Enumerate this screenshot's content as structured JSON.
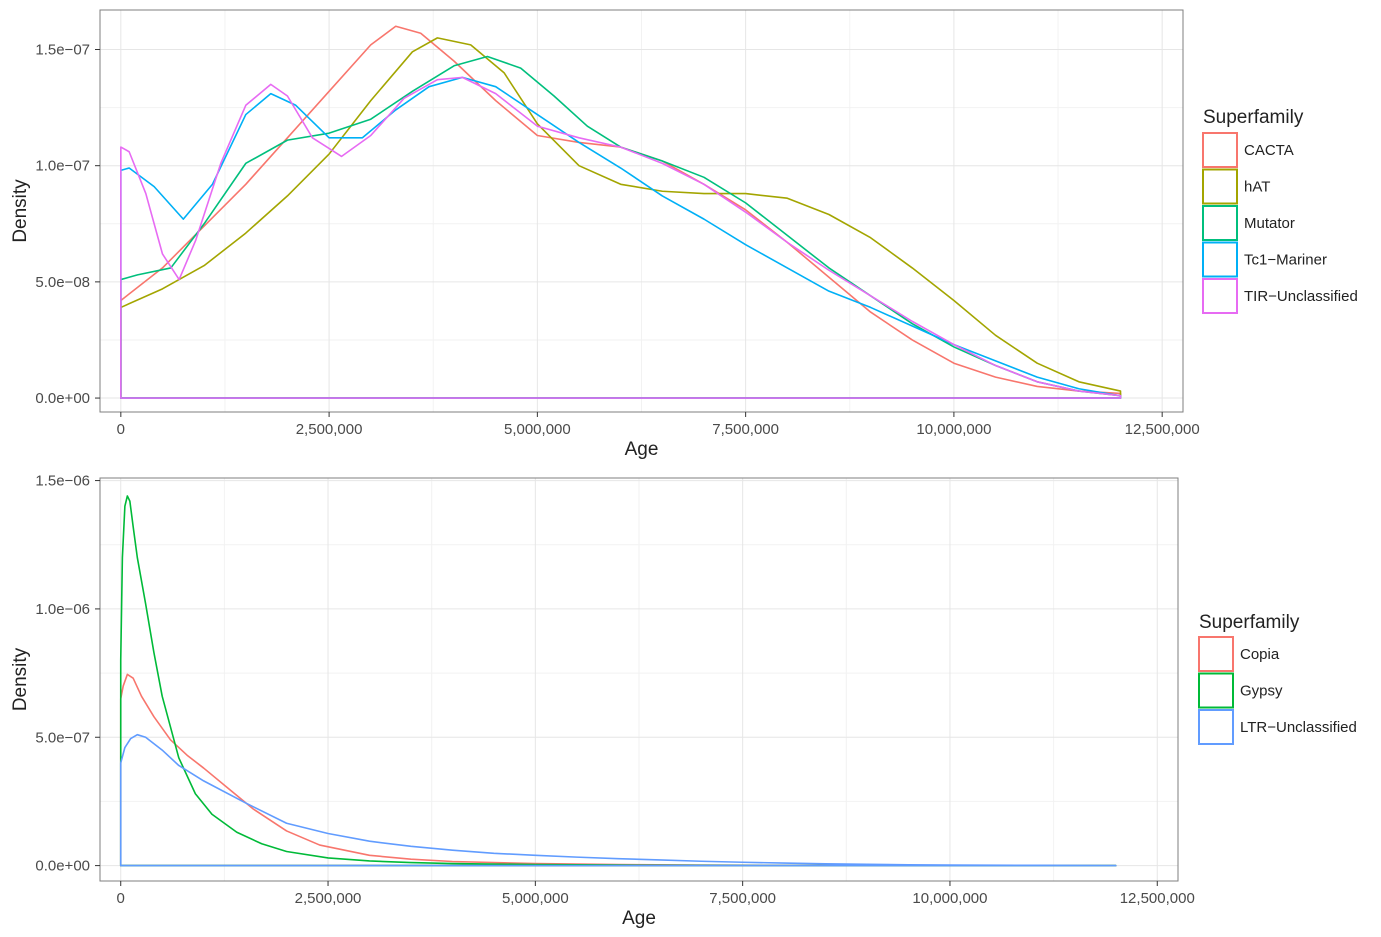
{
  "chart_data": [
    {
      "type": "line",
      "chart_kind": "density",
      "xlabel": "Age",
      "ylabel": "Density",
      "xlim": [
        -250000,
        12750000
      ],
      "ylim": [
        -6e-09,
        1.67e-07
      ],
      "xticks": [
        0,
        2500000,
        5000000,
        7500000,
        10000000,
        12500000
      ],
      "xtick_labels": [
        "0",
        "2,500,000",
        "5,000,000",
        "7,500,000",
        "10,000,000",
        "12,500,000"
      ],
      "yticks": [
        0,
        5e-08,
        1e-07,
        1.5e-07
      ],
      "ytick_labels": [
        "0.0e+00",
        "5.0e−08",
        "1.0e−07",
        "1.5e−07"
      ],
      "grid": true,
      "legend_title": "Superfamily",
      "legend_position": "right",
      "x_end": 12000000,
      "series": [
        {
          "name": "CACTA",
          "color": "#F8766D",
          "x": [
            0,
            500000,
            1000000,
            1500000,
            2000000,
            2500000,
            3000000,
            3300000,
            3600000,
            4000000,
            4500000,
            5000000,
            5500000,
            6000000,
            6500000,
            7000000,
            7500000,
            8000000,
            8500000,
            9000000,
            9500000,
            10000000,
            10500000,
            11000000,
            11500000,
            12000000
          ],
          "y": [
            4.2e-08,
            5.6e-08,
            7.4e-08,
            9.2e-08,
            1.12e-07,
            1.32e-07,
            1.52e-07,
            1.6e-07,
            1.57e-07,
            1.45e-07,
            1.28e-07,
            1.13e-07,
            1.1e-07,
            1.08e-07,
            1.02e-07,
            9.2e-08,
            8.1e-08,
            6.7e-08,
            5.2e-08,
            3.7e-08,
            2.5e-08,
            1.5e-08,
            9e-09,
            5e-09,
            3e-09,
            2e-09
          ]
        },
        {
          "name": "hAT",
          "color": "#A3A500",
          "x": [
            0,
            500000,
            1000000,
            1500000,
            2000000,
            2500000,
            3000000,
            3500000,
            3800000,
            4200000,
            4600000,
            5000000,
            5500000,
            6000000,
            6500000,
            7000000,
            7500000,
            8000000,
            8500000,
            9000000,
            9500000,
            10000000,
            10500000,
            11000000,
            11500000,
            12000000
          ],
          "y": [
            3.9e-08,
            4.7e-08,
            5.7e-08,
            7.1e-08,
            8.7e-08,
            1.05e-07,
            1.28e-07,
            1.49e-07,
            1.55e-07,
            1.52e-07,
            1.4e-07,
            1.18e-07,
            1e-07,
            9.2e-08,
            8.9e-08,
            8.8e-08,
            8.8e-08,
            8.6e-08,
            7.9e-08,
            6.9e-08,
            5.6e-08,
            4.2e-08,
            2.7e-08,
            1.5e-08,
            7e-09,
            3e-09
          ]
        },
        {
          "name": "Mutator",
          "color": "#00BF7D",
          "x": [
            0,
            200000,
            600000,
            1000000,
            1500000,
            2000000,
            2500000,
            3000000,
            3500000,
            4000000,
            4400000,
            4800000,
            5200000,
            5600000,
            6000000,
            6500000,
            7000000,
            7500000,
            8000000,
            8500000,
            9000000,
            9500000,
            10000000,
            10500000,
            11000000,
            11500000,
            12000000
          ],
          "y": [
            5.1e-08,
            5.3e-08,
            5.6e-08,
            7.5e-08,
            1.01e-07,
            1.11e-07,
            1.14e-07,
            1.2e-07,
            1.32e-07,
            1.43e-07,
            1.47e-07,
            1.42e-07,
            1.3e-07,
            1.17e-07,
            1.08e-07,
            1.02e-07,
            9.5e-08,
            8.4e-08,
            7e-08,
            5.6e-08,
            4.4e-08,
            3.2e-08,
            2.2e-08,
            1.4e-08,
            7e-09,
            3e-09,
            1e-09
          ]
        },
        {
          "name": "Tc1−Mariner",
          "color": "#00B0F6",
          "x": [
            0,
            100000,
            400000,
            750000,
            1100000,
            1500000,
            1800000,
            2100000,
            2500000,
            2900000,
            3300000,
            3700000,
            4100000,
            4500000,
            5000000,
            5500000,
            6000000,
            6500000,
            7000000,
            7500000,
            8000000,
            8500000,
            9000000,
            9500000,
            10000000,
            10500000,
            11000000,
            11500000,
            12000000
          ],
          "y": [
            9.8e-08,
            9.9e-08,
            9.1e-08,
            7.7e-08,
            9.2e-08,
            1.22e-07,
            1.31e-07,
            1.26e-07,
            1.12e-07,
            1.12e-07,
            1.24e-07,
            1.34e-07,
            1.38e-07,
            1.34e-07,
            1.22e-07,
            1.1e-07,
            9.9e-08,
            8.7e-08,
            7.7e-08,
            6.6e-08,
            5.6e-08,
            4.6e-08,
            3.9e-08,
            3.1e-08,
            2.3e-08,
            1.6e-08,
            9e-09,
            4e-09,
            1e-09
          ]
        },
        {
          "name": "TIR−Unclassified",
          "color": "#E76BF3",
          "x": [
            0,
            100000,
            300000,
            500000,
            700000,
            900000,
            1200000,
            1500000,
            1800000,
            2000000,
            2300000,
            2650000,
            3000000,
            3400000,
            3800000,
            4100000,
            4500000,
            5000000,
            5500000,
            6000000,
            6500000,
            7000000,
            7500000,
            8000000,
            8500000,
            9000000,
            9500000,
            10000000,
            10500000,
            11000000,
            11500000,
            12000000
          ],
          "y": [
            1.08e-07,
            1.06e-07,
            8.8e-08,
            6.2e-08,
            5.1e-08,
            6.8e-08,
            1.01e-07,
            1.26e-07,
            1.35e-07,
            1.3e-07,
            1.12e-07,
            1.04e-07,
            1.13e-07,
            1.29e-07,
            1.37e-07,
            1.38e-07,
            1.31e-07,
            1.17e-07,
            1.12e-07,
            1.08e-07,
            1.01e-07,
            9.2e-08,
            8e-08,
            6.7e-08,
            5.5e-08,
            4.4e-08,
            3.3e-08,
            2.3e-08,
            1.4e-08,
            7e-09,
            3e-09,
            1e-09
          ]
        }
      ]
    },
    {
      "type": "line",
      "chart_kind": "density",
      "xlabel": "Age",
      "ylabel": "Density",
      "xlim": [
        -250000,
        12750000
      ],
      "ylim": [
        -6e-08,
        1.51e-06
      ],
      "xticks": [
        0,
        2500000,
        5000000,
        7500000,
        10000000,
        12500000
      ],
      "xtick_labels": [
        "0",
        "2,500,000",
        "5,000,000",
        "7,500,000",
        "10,000,000",
        "12,500,000"
      ],
      "yticks": [
        0,
        5e-07,
        1e-06,
        1.5e-06
      ],
      "ytick_labels": [
        "0.0e+00",
        "5.0e−07",
        "1.0e−06",
        "1.5e−06"
      ],
      "grid": true,
      "legend_title": "Superfamily",
      "legend_position": "right",
      "x_end": 12000000,
      "series": [
        {
          "name": "Copia",
          "color": "#F8766D",
          "x": [
            0,
            30000,
            80000,
            150000,
            250000,
            400000,
            600000,
            800000,
            1000000,
            1300000,
            1600000,
            2000000,
            2400000,
            3000000,
            3500000,
            4000000,
            5000000,
            6000000,
            7000000,
            8000000,
            9000000,
            10000000,
            11000000,
            12000000
          ],
          "y": [
            6.5e-07,
            7e-07,
            7.45e-07,
            7.3e-07,
            6.6e-07,
            5.8e-07,
            4.9e-07,
            4.3e-07,
            3.8e-07,
            3e-07,
            2.2e-07,
            1.35e-07,
            8e-08,
            4e-08,
            2.5e-08,
            1.6e-08,
            8e-09,
            4e-09,
            2e-09,
            1e-09,
            0,
            0,
            0,
            0
          ]
        },
        {
          "name": "Gypsy",
          "color": "#00BA38",
          "x": [
            0,
            20000,
            50000,
            80000,
            110000,
            150000,
            200000,
            300000,
            400000,
            500000,
            700000,
            900000,
            1100000,
            1400000,
            1700000,
            2000000,
            2500000,
            3000000,
            3500000,
            4000000,
            5000000,
            6000000,
            7000000,
            8000000,
            9000000,
            10000000,
            11000000,
            12000000
          ],
          "y": [
            8e-07,
            1.2e-06,
            1.4e-06,
            1.44e-06,
            1.42e-06,
            1.32e-06,
            1.2e-06,
            1.02e-06,
            8.3e-07,
            6.6e-07,
            4.2e-07,
            2.8e-07,
            2e-07,
            1.3e-07,
            8.5e-08,
            5.5e-08,
            3e-08,
            1.8e-08,
            1.2e-08,
            8e-09,
            4e-09,
            2e-09,
            1e-09,
            0,
            0,
            0,
            0,
            0
          ]
        },
        {
          "name": "LTR−Unclassified",
          "color": "#619CFF",
          "x": [
            0,
            50000,
            120000,
            200000,
            300000,
            500000,
            700000,
            1000000,
            1500000,
            2000000,
            2500000,
            3000000,
            3500000,
            4000000,
            4500000,
            5000000,
            5500000,
            6000000,
            6500000,
            7000000,
            7500000,
            8000000,
            8500000,
            9000000,
            9500000,
            10000000,
            11000000,
            12000000
          ],
          "y": [
            4e-07,
            4.6e-07,
            4.95e-07,
            5.1e-07,
            5e-07,
            4.5e-07,
            3.9e-07,
            3.3e-07,
            2.45e-07,
            1.65e-07,
            1.25e-07,
            9.5e-08,
            7.5e-08,
            6e-08,
            4.8e-08,
            4e-08,
            3.3e-08,
            2.7e-08,
            2.2e-08,
            1.7e-08,
            1.3e-08,
            1e-08,
            7e-09,
            5e-09,
            3e-09,
            2e-09,
            1e-09,
            0
          ]
        }
      ]
    }
  ]
}
